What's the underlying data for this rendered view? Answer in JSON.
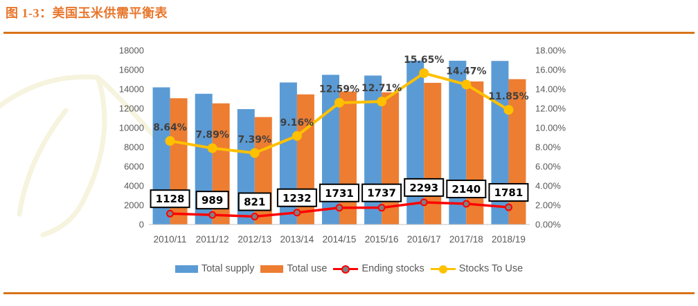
{
  "page": {
    "title": "图 1-3：美国玉米供需平衡表",
    "title_color": "#E8762C",
    "divider_color": "#D9731A",
    "background": "#FFFFFF"
  },
  "chart_data": {
    "type": "bar",
    "subtype": "combo-bar-line-dual-axis",
    "title": "",
    "xlabel": "",
    "ylabel_left": "",
    "ylabel_right": "",
    "grid": false,
    "legend_position": "bottom",
    "categories": [
      "2010/11",
      "2011/12",
      "2012/13",
      "2013/14",
      "2014/15",
      "2015/16",
      "2016/17",
      "2017/18",
      "2018/19"
    ],
    "series": [
      {
        "name": "Total supply",
        "type": "bar",
        "axis": "left",
        "color": "#5B9BD5",
        "values": [
          14182,
          13517,
          11932,
          14686,
          15479,
          15401,
          16942,
          16934,
          16913
        ]
      },
      {
        "name": "Total use",
        "type": "bar",
        "axis": "left",
        "color": "#ED7D31",
        "values": [
          13055,
          12528,
          11111,
          13454,
          13748,
          13664,
          14649,
          14793,
          15030
        ]
      },
      {
        "name": "Ending stocks",
        "type": "line",
        "axis": "left",
        "color": "#FF0000",
        "marker_fill": "#808080",
        "values": [
          1128,
          989,
          821,
          1232,
          1731,
          1737,
          2293,
          2140,
          1781
        ],
        "data_labels": [
          "1128",
          "989",
          "821",
          "1232",
          "1731",
          "1737",
          "2293",
          "2140",
          "1781"
        ],
        "data_label_style": "boxed"
      },
      {
        "name": "Stocks To Use",
        "type": "line",
        "axis": "right",
        "color": "#FFC000",
        "marker_fill": "#FFC000",
        "values": [
          8.64,
          7.89,
          7.39,
          9.16,
          12.59,
          12.71,
          15.65,
          14.47,
          11.85
        ],
        "data_labels": [
          "8.64%",
          "7.89%",
          "7.39%",
          "9.16%",
          "12.59%",
          "12.71%",
          "15.65%",
          "14.47%",
          "11.85%"
        ],
        "data_label_style": "plain"
      }
    ],
    "left_axis": {
      "min": 0,
      "max": 18000,
      "step": 2000,
      "ticks": [
        "0",
        "2000",
        "4000",
        "6000",
        "8000",
        "10000",
        "12000",
        "14000",
        "16000",
        "18000"
      ]
    },
    "right_axis": {
      "min": 0,
      "max": 18,
      "step": 2,
      "ticks": [
        "0.00%",
        "2.00%",
        "4.00%",
        "6.00%",
        "8.00%",
        "10.00%",
        "12.00%",
        "14.00%",
        "16.00%",
        "18.00%"
      ]
    },
    "axis_line_color": "#C0C0C0",
    "watermark_color": "#F6F3DE"
  }
}
